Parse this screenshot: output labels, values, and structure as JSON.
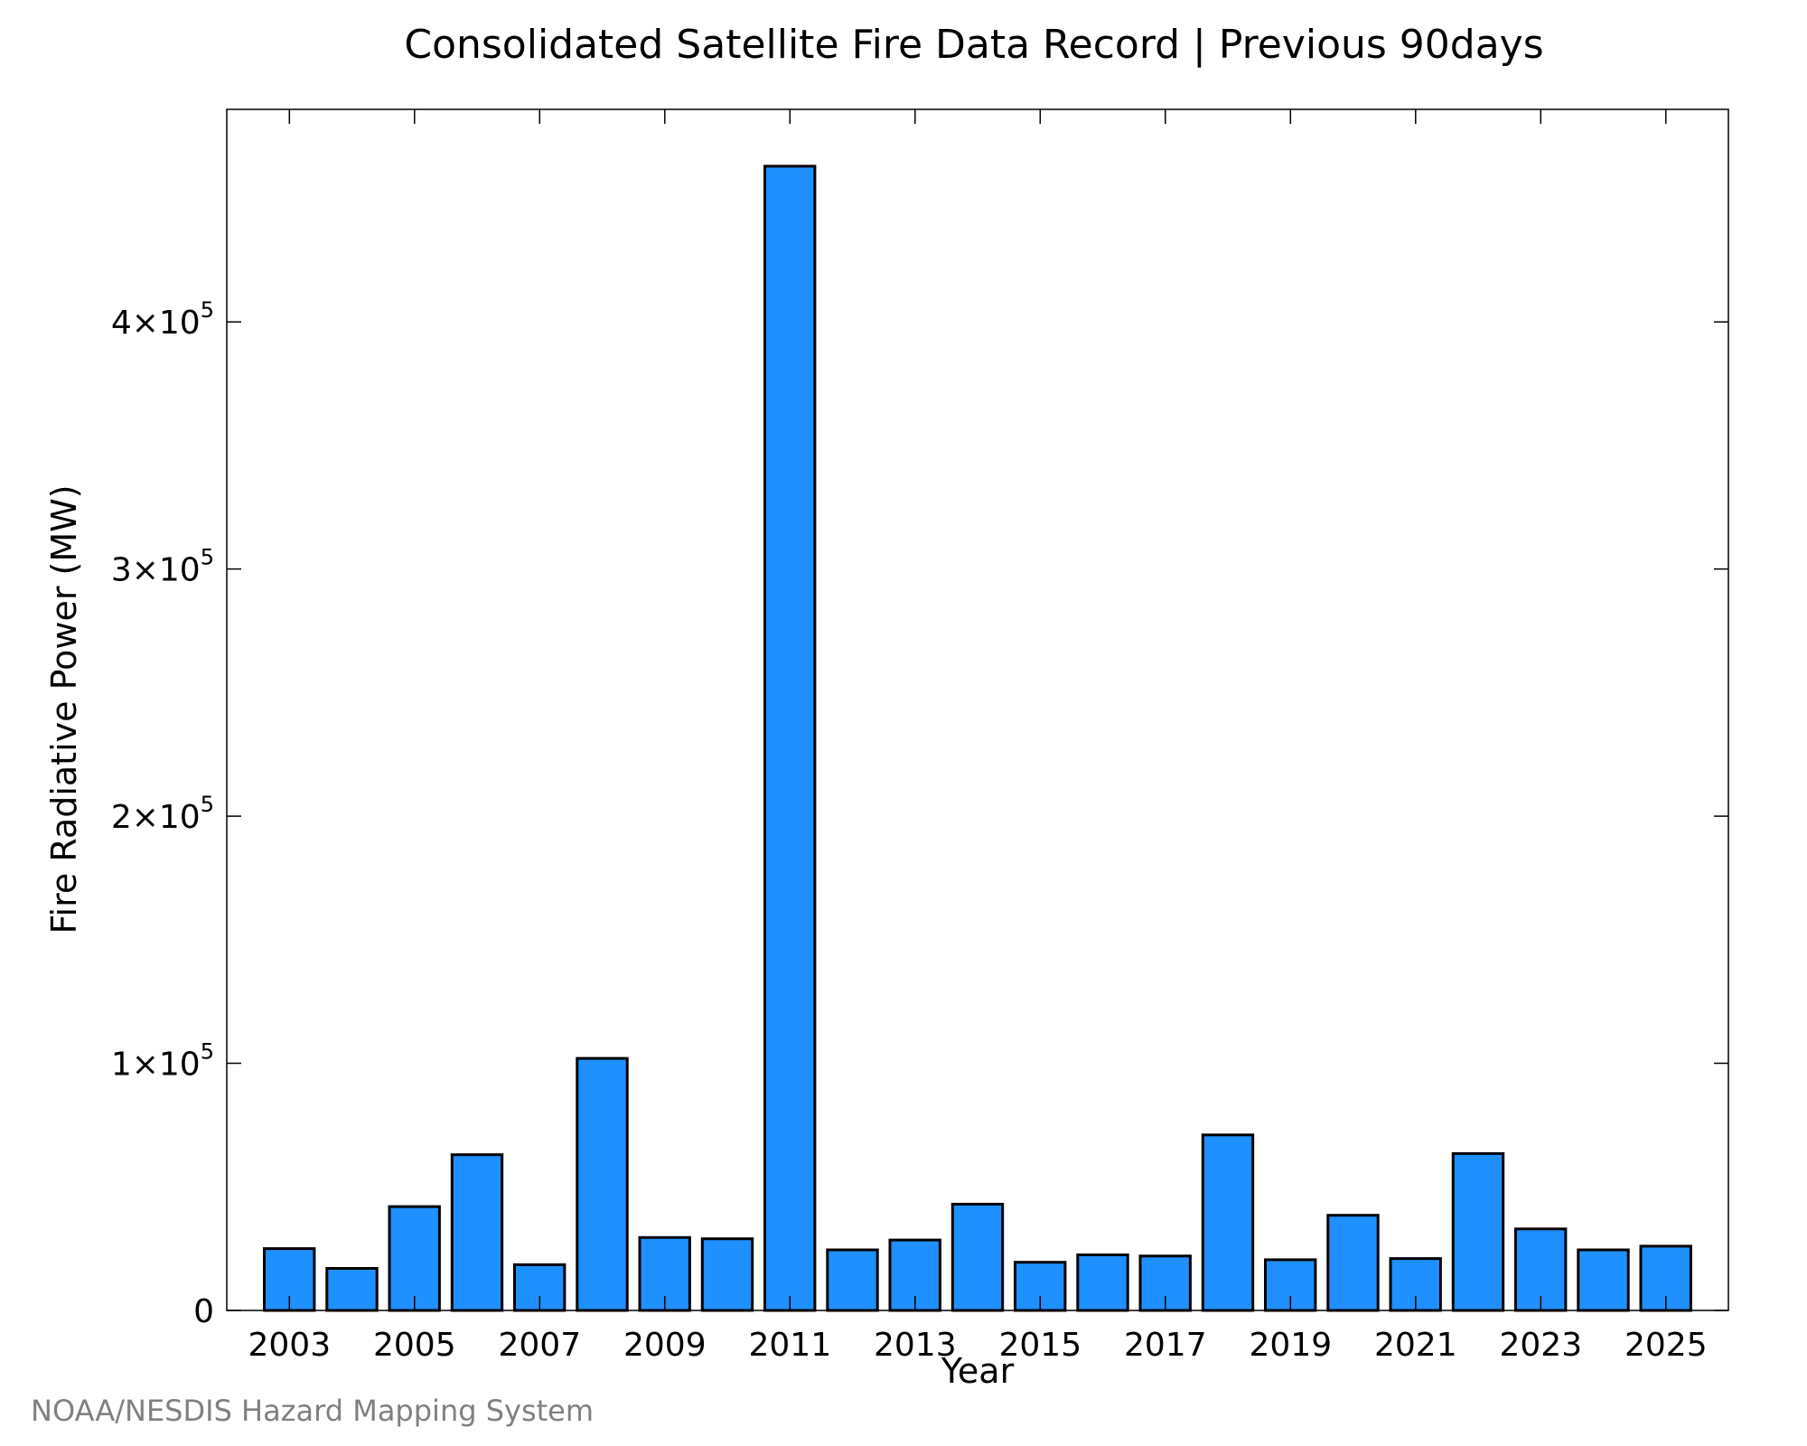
{
  "chart_data": {
    "type": "bar",
    "title": "Consolidated Satellite Fire Data Record | Previous 90days",
    "xlabel": "Year",
    "ylabel": "Fire Radiative Power (MW)",
    "categories": [
      "2003",
      "2004",
      "2005",
      "2006",
      "2007",
      "2008",
      "2009",
      "2010",
      "2011",
      "2012",
      "2013",
      "2014",
      "2015",
      "2016",
      "2017",
      "2018",
      "2019",
      "2020",
      "2021",
      "2022",
      "2023",
      "2024",
      "2025"
    ],
    "values": [
      25000,
      17000,
      42000,
      63000,
      18500,
      102000,
      29500,
      29000,
      463000,
      24500,
      28500,
      43000,
      19500,
      22500,
      22000,
      71000,
      20500,
      38500,
      21000,
      63500,
      33000,
      24500,
      26000
    ],
    "xtick_labels": [
      "2003",
      "2005",
      "2007",
      "2009",
      "2011",
      "2013",
      "2015",
      "2017",
      "2019",
      "2021",
      "2023",
      "2025"
    ],
    "yticks": [
      {
        "value": 0,
        "base": "0",
        "exp": ""
      },
      {
        "value": 100000,
        "base": "1×10",
        "exp": "5"
      },
      {
        "value": 200000,
        "base": "2×10",
        "exp": "5"
      },
      {
        "value": 300000,
        "base": "3×10",
        "exp": "5"
      },
      {
        "value": 400000,
        "base": "4×10",
        "exp": "5"
      }
    ],
    "xlim": [
      2002,
      2026
    ],
    "ylim": [
      0,
      486000
    ],
    "bar_color": "#1e90ff",
    "grid": false,
    "legend": "none"
  },
  "credit": "NOAA/NESDIS Hazard Mapping System"
}
